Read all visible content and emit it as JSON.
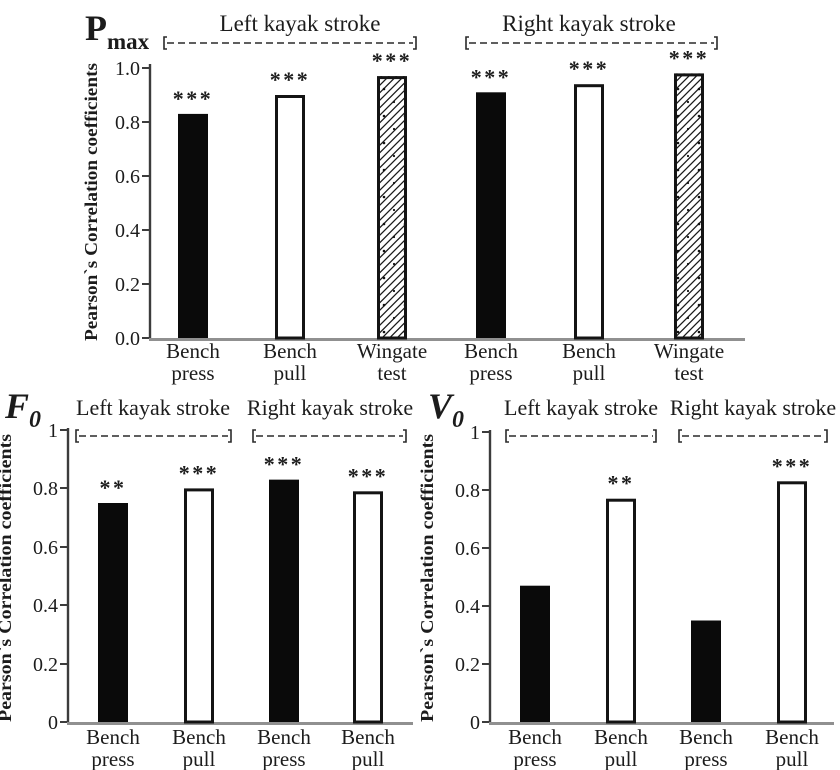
{
  "figure": {
    "description_label": "Pearson`s Correlation coefficients",
    "background": "#ffffff"
  },
  "colors": {
    "text": "#1c1c1c",
    "bar_fill": "#0a0a0a",
    "bar_stroke": "#141414",
    "x_axis": "#909090",
    "y_axis": "#3c3c3c",
    "bracket": "#2a2a2a",
    "background": "#ffffff"
  },
  "chart_data": [
    {
      "type": "bar",
      "id": "pmax",
      "title": {
        "text": "P",
        "sub": "max",
        "italic": false
      },
      "ylabel": "Pearson`s Correlation coefficients",
      "xlabel": "",
      "ylim": [
        0,
        1
      ],
      "yticks": [
        "1.0",
        "0.8",
        "0.6",
        "0.4",
        "0.2",
        "0.0"
      ],
      "grid": false,
      "legend": "none",
      "groups": [
        {
          "label": "Left kayak stroke"
        },
        {
          "label": "Right kayak stroke"
        }
      ],
      "categories": [
        "Bench press",
        "Bench pull",
        "Wingate test",
        "Bench press",
        "Bench pull",
        "Wingate test"
      ],
      "values": [
        0.83,
        0.9,
        0.97,
        0.91,
        0.94,
        0.98
      ],
      "significance": [
        "***",
        "***",
        "***",
        "***",
        "***",
        "***"
      ],
      "bar_styles": [
        "solid-black",
        "open-white",
        "diagonal-hatch",
        "solid-black",
        "open-white",
        "diagonal-hatch"
      ]
    },
    {
      "type": "bar",
      "id": "f0",
      "title": {
        "text": "F",
        "sub": "0",
        "italic": true
      },
      "ylabel": "Pearson`s Correlation coefficients",
      "xlabel": "",
      "ylim": [
        0,
        1
      ],
      "yticks": [
        "1",
        "0.8",
        "0.6",
        "0.4",
        "0.2",
        "0"
      ],
      "grid": false,
      "legend": "none",
      "groups": [
        {
          "label": "Left kayak stroke"
        },
        {
          "label": "Right kayak stroke"
        }
      ],
      "categories": [
        "Bench press",
        "Bench pull",
        "Bench press",
        "Bench pull"
      ],
      "values": [
        0.75,
        0.8,
        0.83,
        0.79
      ],
      "significance": [
        "**",
        "***",
        "***",
        "***"
      ],
      "bar_styles": [
        "solid-black",
        "open-white",
        "solid-black",
        "open-white"
      ]
    },
    {
      "type": "bar",
      "id": "v0",
      "title": {
        "text": "V",
        "sub": "0",
        "italic": true
      },
      "ylabel": "Pearson`s Correlation coefficients",
      "xlabel": "",
      "ylim": [
        0,
        1
      ],
      "yticks": [
        "1",
        "0.8",
        "0.6",
        "0.4",
        "0.2",
        "0"
      ],
      "grid": false,
      "legend": "none",
      "groups": [
        {
          "label": "Left kayak stroke"
        },
        {
          "label": "Right kayak stroke"
        }
      ],
      "categories": [
        "Bench press",
        "Bench pull",
        "Bench press",
        "Bench pull"
      ],
      "values": [
        0.47,
        0.77,
        0.35,
        0.83
      ],
      "significance": [
        "",
        "**",
        "",
        "***"
      ],
      "bar_styles": [
        "solid-black",
        "open-white",
        "solid-black",
        "open-white"
      ]
    }
  ]
}
